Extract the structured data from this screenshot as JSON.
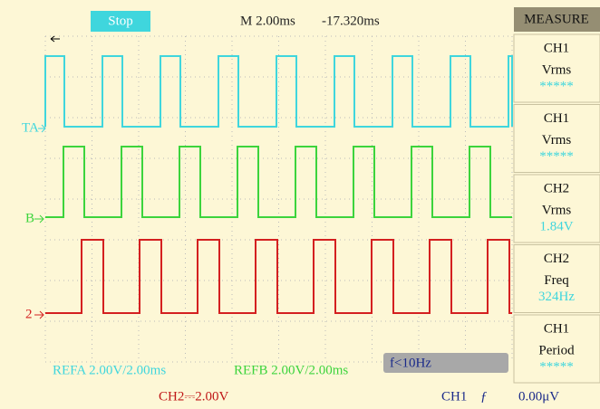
{
  "top_bar": {
    "status": "Stop",
    "timebase": "M 2.00ms",
    "trigger_position": "-17.320ms"
  },
  "measure_menu": {
    "title": "MEASURE",
    "items": [
      {
        "source": "CH1",
        "measurement": "Vrms",
        "value": "*****"
      },
      {
        "source": "CH1",
        "measurement": "Vrms",
        "value": "*****"
      },
      {
        "source": "CH2",
        "measurement": "Vrms",
        "value": "1.84V"
      },
      {
        "source": "CH2",
        "measurement": "Freq",
        "value": "324Hz"
      },
      {
        "source": "CH1",
        "measurement": "Period",
        "value": "*****"
      }
    ]
  },
  "markers": {
    "ref_a": "TA",
    "ref_b": "B",
    "ch2": "2"
  },
  "screen_labels": {
    "refa": "REFA 2.00V/2.00ms",
    "refb": "REFB 2.00V/2.00ms",
    "freq_warning": "f<10Hz"
  },
  "bottom_bar": {
    "ch2_scale": "CH2⎓2.00V",
    "trigger_source": "CH1",
    "trigger_edge": "ƒ",
    "trigger_level": "0.00μV"
  }
}
